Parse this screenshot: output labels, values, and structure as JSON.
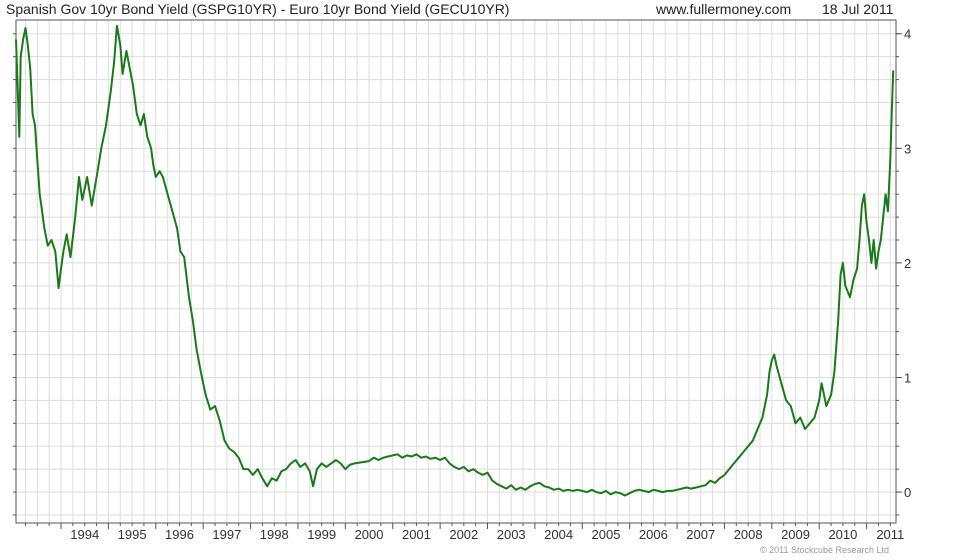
{
  "header": {
    "title": "Spanish Gov 10yr Bond Yield (GSPG10YR) - Euro 10yr Bond Yield (GECU10YR)",
    "source": "www.fullermoney.com",
    "date": "18 Jul 2011"
  },
  "footer": {
    "copyright": "© 2011 Stockcube Research Ltd"
  },
  "colors": {
    "line": "#1a7a1a",
    "grid": "#dddddd",
    "axis": "#555555",
    "background": "#ffffff"
  },
  "chart_data": {
    "type": "line",
    "title": "Spanish Gov 10yr Bond Yield (GSPG10YR) - Euro 10yr Bond Yield (GECU10YR)",
    "xlabel": "",
    "ylabel": "",
    "xlim": [
      1993.05,
      2011.62
    ],
    "ylim": [
      -0.27,
      4.12
    ],
    "x_ticks": [
      "1994",
      "1995",
      "1996",
      "1997",
      "1998",
      "1999",
      "2000",
      "2001",
      "2002",
      "2003",
      "2004",
      "2005",
      "2006",
      "2007",
      "2008",
      "2009",
      "2010",
      "2011"
    ],
    "y_ticks": [
      0,
      1,
      2,
      3,
      4
    ],
    "y_axis_side": "right",
    "grid": true,
    "series": [
      {
        "values": [
          [
            1993.05,
            3.95
          ],
          [
            1993.08,
            3.6
          ],
          [
            1993.12,
            3.1
          ],
          [
            1993.15,
            3.8
          ],
          [
            1993.2,
            3.95
          ],
          [
            1993.25,
            4.05
          ],
          [
            1993.3,
            3.9
          ],
          [
            1993.35,
            3.7
          ],
          [
            1993.4,
            3.3
          ],
          [
            1993.45,
            3.2
          ],
          [
            1993.5,
            2.9
          ],
          [
            1993.55,
            2.6
          ],
          [
            1993.6,
            2.45
          ],
          [
            1993.65,
            2.3
          ],
          [
            1993.72,
            2.15
          ],
          [
            1993.8,
            2.2
          ],
          [
            1993.88,
            2.1
          ],
          [
            1993.95,
            1.78
          ],
          [
            1994.0,
            1.95
          ],
          [
            1994.05,
            2.1
          ],
          [
            1994.12,
            2.25
          ],
          [
            1994.2,
            2.05
          ],
          [
            1994.3,
            2.4
          ],
          [
            1994.38,
            2.75
          ],
          [
            1994.45,
            2.55
          ],
          [
            1994.55,
            2.75
          ],
          [
            1994.65,
            2.5
          ],
          [
            1994.75,
            2.75
          ],
          [
            1994.85,
            3.0
          ],
          [
            1994.95,
            3.2
          ],
          [
            1995.05,
            3.5
          ],
          [
            1995.12,
            3.75
          ],
          [
            1995.18,
            4.07
          ],
          [
            1995.25,
            3.9
          ],
          [
            1995.3,
            3.65
          ],
          [
            1995.38,
            3.85
          ],
          [
            1995.45,
            3.7
          ],
          [
            1995.52,
            3.55
          ],
          [
            1995.6,
            3.3
          ],
          [
            1995.68,
            3.2
          ],
          [
            1995.75,
            3.3
          ],
          [
            1995.82,
            3.1
          ],
          [
            1995.9,
            3.0
          ],
          [
            1995.95,
            2.85
          ],
          [
            1996.0,
            2.75
          ],
          [
            1996.08,
            2.8
          ],
          [
            1996.15,
            2.75
          ],
          [
            1996.25,
            2.6
          ],
          [
            1996.35,
            2.45
          ],
          [
            1996.45,
            2.3
          ],
          [
            1996.52,
            2.1
          ],
          [
            1996.6,
            2.05
          ],
          [
            1996.7,
            1.7
          ],
          [
            1996.78,
            1.5
          ],
          [
            1996.86,
            1.25
          ],
          [
            1996.95,
            1.05
          ],
          [
            1997.05,
            0.85
          ],
          [
            1997.15,
            0.72
          ],
          [
            1997.25,
            0.75
          ],
          [
            1997.35,
            0.62
          ],
          [
            1997.45,
            0.45
          ],
          [
            1997.55,
            0.38
          ],
          [
            1997.65,
            0.35
          ],
          [
            1997.75,
            0.3
          ],
          [
            1997.85,
            0.2
          ],
          [
            1997.95,
            0.2
          ],
          [
            1998.05,
            0.15
          ],
          [
            1998.15,
            0.2
          ],
          [
            1998.25,
            0.12
          ],
          [
            1998.35,
            0.05
          ],
          [
            1998.45,
            0.12
          ],
          [
            1998.55,
            0.1
          ],
          [
            1998.65,
            0.18
          ],
          [
            1998.75,
            0.2
          ],
          [
            1998.85,
            0.25
          ],
          [
            1998.95,
            0.28
          ],
          [
            1999.05,
            0.22
          ],
          [
            1999.15,
            0.25
          ],
          [
            1999.25,
            0.18
          ],
          [
            1999.32,
            0.05
          ],
          [
            1999.4,
            0.2
          ],
          [
            1999.5,
            0.25
          ],
          [
            1999.6,
            0.22
          ],
          [
            1999.7,
            0.25
          ],
          [
            1999.8,
            0.28
          ],
          [
            1999.9,
            0.25
          ],
          [
            2000.0,
            0.2
          ],
          [
            2000.1,
            0.24
          ],
          [
            2000.2,
            0.25
          ],
          [
            2000.35,
            0.26
          ],
          [
            2000.5,
            0.27
          ],
          [
            2000.6,
            0.3
          ],
          [
            2000.7,
            0.28
          ],
          [
            2000.8,
            0.3
          ],
          [
            2000.9,
            0.31
          ],
          [
            2001.0,
            0.32
          ],
          [
            2001.1,
            0.33
          ],
          [
            2001.2,
            0.3
          ],
          [
            2001.3,
            0.32
          ],
          [
            2001.4,
            0.31
          ],
          [
            2001.5,
            0.33
          ],
          [
            2001.6,
            0.3
          ],
          [
            2001.7,
            0.31
          ],
          [
            2001.8,
            0.29
          ],
          [
            2001.9,
            0.3
          ],
          [
            2002.0,
            0.28
          ],
          [
            2002.1,
            0.3
          ],
          [
            2002.2,
            0.25
          ],
          [
            2002.3,
            0.22
          ],
          [
            2002.4,
            0.2
          ],
          [
            2002.5,
            0.22
          ],
          [
            2002.6,
            0.18
          ],
          [
            2002.7,
            0.2
          ],
          [
            2002.8,
            0.17
          ],
          [
            2002.9,
            0.15
          ],
          [
            2003.0,
            0.17
          ],
          [
            2003.1,
            0.1
          ],
          [
            2003.2,
            0.07
          ],
          [
            2003.3,
            0.05
          ],
          [
            2003.4,
            0.03
          ],
          [
            2003.5,
            0.06
          ],
          [
            2003.6,
            0.02
          ],
          [
            2003.7,
            0.04
          ],
          [
            2003.8,
            0.02
          ],
          [
            2003.9,
            0.05
          ],
          [
            2004.0,
            0.07
          ],
          [
            2004.1,
            0.08
          ],
          [
            2004.2,
            0.05
          ],
          [
            2004.3,
            0.04
          ],
          [
            2004.4,
            0.02
          ],
          [
            2004.5,
            0.03
          ],
          [
            2004.6,
            0.01
          ],
          [
            2004.7,
            0.02
          ],
          [
            2004.8,
            0.01
          ],
          [
            2004.9,
            0.02
          ],
          [
            2005.0,
            0.01
          ],
          [
            2005.1,
            0.0
          ],
          [
            2005.2,
            0.02
          ],
          [
            2005.3,
            0.0
          ],
          [
            2005.4,
            -0.01
          ],
          [
            2005.5,
            0.01
          ],
          [
            2005.6,
            -0.02
          ],
          [
            2005.7,
            0.0
          ],
          [
            2005.8,
            -0.01
          ],
          [
            2005.9,
            -0.03
          ],
          [
            2006.0,
            -0.01
          ],
          [
            2006.1,
            0.01
          ],
          [
            2006.2,
            0.02
          ],
          [
            2006.3,
            0.01
          ],
          [
            2006.4,
            0.0
          ],
          [
            2006.5,
            0.02
          ],
          [
            2006.6,
            0.01
          ],
          [
            2006.7,
            0.0
          ],
          [
            2006.8,
            0.01
          ],
          [
            2006.9,
            0.01
          ],
          [
            2007.0,
            0.02
          ],
          [
            2007.1,
            0.03
          ],
          [
            2007.2,
            0.04
          ],
          [
            2007.3,
            0.03
          ],
          [
            2007.4,
            0.04
          ],
          [
            2007.5,
            0.05
          ],
          [
            2007.6,
            0.06
          ],
          [
            2007.7,
            0.1
          ],
          [
            2007.8,
            0.08
          ],
          [
            2007.9,
            0.12
          ],
          [
            2008.0,
            0.15
          ],
          [
            2008.1,
            0.2
          ],
          [
            2008.2,
            0.25
          ],
          [
            2008.3,
            0.3
          ],
          [
            2008.4,
            0.35
          ],
          [
            2008.5,
            0.4
          ],
          [
            2008.6,
            0.45
          ],
          [
            2008.7,
            0.55
          ],
          [
            2008.8,
            0.65
          ],
          [
            2008.9,
            0.85
          ],
          [
            2008.95,
            1.05
          ],
          [
            2009.0,
            1.15
          ],
          [
            2009.05,
            1.2
          ],
          [
            2009.1,
            1.1
          ],
          [
            2009.2,
            0.95
          ],
          [
            2009.3,
            0.8
          ],
          [
            2009.4,
            0.75
          ],
          [
            2009.5,
            0.6
          ],
          [
            2009.6,
            0.65
          ],
          [
            2009.7,
            0.55
          ],
          [
            2009.8,
            0.6
          ],
          [
            2009.9,
            0.65
          ],
          [
            2010.0,
            0.8
          ],
          [
            2010.05,
            0.95
          ],
          [
            2010.15,
            0.75
          ],
          [
            2010.25,
            0.85
          ],
          [
            2010.32,
            1.05
          ],
          [
            2010.4,
            1.5
          ],
          [
            2010.45,
            1.9
          ],
          [
            2010.5,
            2.0
          ],
          [
            2010.55,
            1.8
          ],
          [
            2010.6,
            1.75
          ],
          [
            2010.65,
            1.7
          ],
          [
            2010.72,
            1.85
          ],
          [
            2010.8,
            1.95
          ],
          [
            2010.85,
            2.2
          ],
          [
            2010.9,
            2.5
          ],
          [
            2010.95,
            2.6
          ],
          [
            2011.0,
            2.35
          ],
          [
            2011.05,
            2.2
          ],
          [
            2011.1,
            2.0
          ],
          [
            2011.15,
            2.2
          ],
          [
            2011.2,
            1.95
          ],
          [
            2011.25,
            2.1
          ],
          [
            2011.3,
            2.2
          ],
          [
            2011.35,
            2.4
          ],
          [
            2011.4,
            2.6
          ],
          [
            2011.45,
            2.45
          ],
          [
            2011.5,
            2.9
          ],
          [
            2011.53,
            3.3
          ],
          [
            2011.56,
            3.68
          ]
        ]
      }
    ]
  }
}
